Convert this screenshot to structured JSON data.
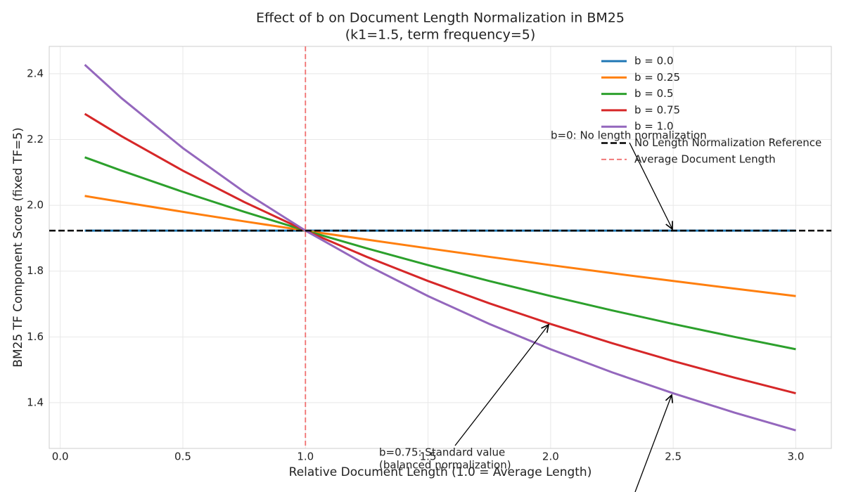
{
  "chart_data": {
    "type": "line",
    "title": "Effect of b on Document Length Normalization in BM25",
    "subtitle": "(k1=1.5, term frequency=5)",
    "x_label": "Relative Document Length (1.0 = Average Length)",
    "y_label": "BM25 TF Component Score (fixed TF=5)",
    "x": [
      0.1,
      0.25,
      0.5,
      0.75,
      1.0,
      1.25,
      1.5,
      1.75,
      2.0,
      2.25,
      2.5,
      2.75,
      3.0
    ],
    "series": [
      {
        "name": "b = 0.0",
        "color": "#1f77b4",
        "values": [
          1.9231,
          1.9231,
          1.9231,
          1.9231,
          1.9231,
          1.9231,
          1.9231,
          1.9231,
          1.9231,
          1.9231,
          1.9231,
          1.9231,
          1.9231
        ]
      },
      {
        "name": "b = 0.25",
        "color": "#ff7f0e",
        "values": [
          2.0284,
          2.0101,
          1.9802,
          1.9512,
          1.9231,
          1.8957,
          1.8692,
          1.8433,
          1.8182,
          1.7937,
          1.7699,
          1.7467,
          1.7241
        ]
      },
      {
        "name": "b = 0.5",
        "color": "#2ca02c",
        "values": [
          2.1459,
          2.1053,
          2.0408,
          1.9802,
          1.9231,
          1.8692,
          1.8182,
          1.7699,
          1.7241,
          1.6807,
          1.6393,
          1.6,
          1.5625
        ]
      },
      {
        "name": "b = 0.75",
        "color": "#d62728",
        "values": [
          2.2779,
          2.2099,
          2.1053,
          2.0101,
          1.9231,
          1.8433,
          1.7699,
          1.7021,
          1.6393,
          1.581,
          1.5267,
          1.476,
          1.4286
        ]
      },
      {
        "name": "b = 1.0",
        "color": "#9467bd",
        "values": [
          2.4272,
          2.3256,
          2.1739,
          2.0408,
          1.9231,
          1.8182,
          1.7241,
          1.6393,
          1.5625,
          1.4925,
          1.4286,
          1.3699,
          1.3158
        ]
      }
    ],
    "reference_lines": [
      {
        "name": "No Length Normalization Reference",
        "color": "#000000",
        "orientation": "horizontal",
        "value": 1.9231
      },
      {
        "name": "Average Document Length",
        "color": "#f07070",
        "orientation": "vertical",
        "value": 1.0
      }
    ],
    "annotations": [
      {
        "lines": [
          "b=0: No length normalization"
        ]
      },
      {
        "lines": [
          "b=0.75: Standard value",
          "(balanced normalization)"
        ]
      }
    ],
    "xlim": [
      -0.045,
      3.145
    ],
    "ylim": [
      1.261,
      2.483
    ],
    "xticks": [
      {
        "value": 0,
        "label": "0.0"
      },
      0.5,
      {
        "value": 1,
        "label": "1.0"
      },
      1.5,
      {
        "value": 2,
        "label": "2.0"
      },
      2.5,
      {
        "value": 3,
        "label": "3.0"
      }
    ],
    "yticks": [
      1.4,
      1.6,
      1.8,
      {
        "value": 2,
        "label": "2.0"
      },
      2.2,
      2.4
    ],
    "grid": true,
    "legend": "upper right"
  }
}
